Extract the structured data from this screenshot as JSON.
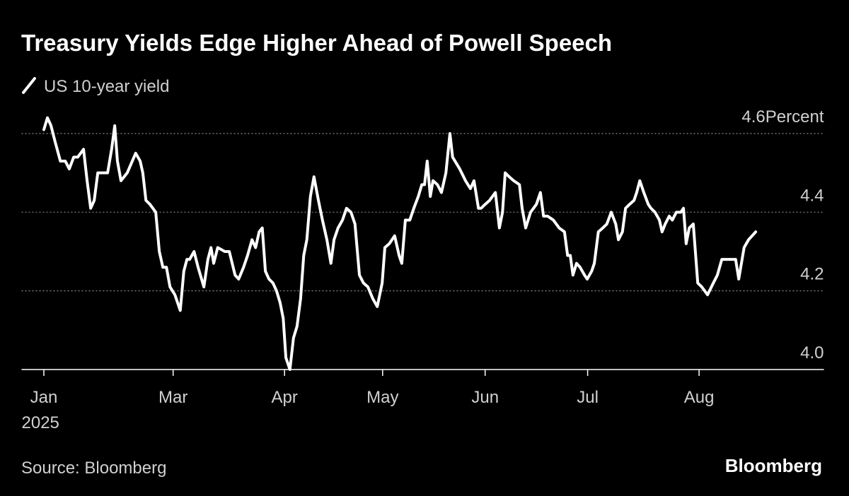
{
  "chart_data": {
    "type": "line",
    "title": "Treasury Yields Edge Higher Ahead of Powell Speech",
    "ylabel": "Percent",
    "source": "Source: Bloomberg",
    "brand": "Bloomberg",
    "grid": true,
    "legend": "top-left",
    "xlim": [
      -5,
      175
    ],
    "ylim": [
      4,
      4.65
    ],
    "yticks": [
      {
        "value": 4,
        "label": "4.0"
      },
      4.2,
      4.4,
      4.6
    ],
    "xticks": [
      {
        "value": 0,
        "label": "Jan\n2025"
      },
      {
        "value": 29,
        "label": "Mar"
      },
      {
        "value": 54,
        "label": "Apr"
      },
      {
        "value": 76,
        "label": "May"
      },
      {
        "value": 99,
        "label": "Jun"
      },
      {
        "value": 122,
        "label": "Jul"
      },
      {
        "value": 147,
        "label": "Aug"
      }
    ],
    "x": [
      0,
      0.8,
      1.6,
      2.5,
      3.7,
      4.8,
      5.7,
      6.7,
      7.6,
      8.9,
      9.7,
      10.5,
      11.3,
      12.1,
      13.3,
      14.3,
      15.2,
      15.9,
      16.5,
      17.3,
      18.7,
      20.6,
      21.6,
      22.2,
      22.9,
      23.8,
      25.1,
      25.9,
      26.7,
      27.5,
      28.3,
      29.4,
      30.6,
      31.4,
      32.1,
      32.7,
      33.7,
      34.6,
      35.9,
      36.8,
      37.5,
      38.1,
      39.0,
      40.6,
      41.6,
      42.9,
      43.7,
      44.8,
      45.7,
      46.7,
      47.5,
      48.3,
      49.0,
      49.7,
      50.5,
      51.4,
      52.2,
      53.0,
      53.7,
      54.3,
      55.2,
      56.0,
      56.8,
      57.6,
      58.3,
      59.0,
      59.8,
      60.6,
      61.6,
      62.5,
      63.5,
      64.4,
      65.1,
      66.0,
      67.0,
      67.9,
      68.9,
      69.8,
      70.8,
      71.7,
      72.7,
      73.8,
      74.8,
      75.9,
      76.5,
      77.5,
      78.7,
      79.7,
      80.3,
      81.1,
      82.1,
      83.0,
      84.0,
      84.8,
      85.4,
      86.0,
      86.7,
      87.3,
      88.3,
      89.2,
      90.2,
      91.1,
      91.7,
      93.3,
      94.6,
      95.7,
      96.5,
      97.5,
      98.1,
      99.0,
      100.0,
      101.3,
      102.2,
      102.9,
      103.5,
      104.4,
      105.4,
      106.7,
      107.3,
      108.1,
      109.2,
      110.5,
      111.4,
      112.1,
      113.0,
      114.3,
      115.6,
      116.8,
      117.5,
      118.1,
      118.7,
      119.5,
      120.3,
      121.3,
      121.9,
      122.9,
      123.5,
      124.4,
      125.4,
      126.3,
      127.3,
      128.3,
      128.9,
      129.8,
      130.5,
      131.4,
      132.4,
      133.0,
      133.7,
      134.6,
      135.6,
      136.2,
      137.1,
      138.1,
      138.7,
      139.4,
      140.3,
      141.0,
      141.9,
      142.9,
      143.5,
      144.1,
      144.8,
      145.7,
      146.7,
      147.6,
      148.9,
      150.2,
      151.1,
      152.1,
      153.3,
      155.2,
      155.9,
      156.5,
      157.1,
      158.1,
      159.7
    ],
    "series": [
      {
        "name": "US 10-year yield",
        "color": "#ffffff",
        "values": [
          4.61,
          4.64,
          4.62,
          4.58,
          4.53,
          4.53,
          4.51,
          4.54,
          4.54,
          4.56,
          4.48,
          4.41,
          4.43,
          4.5,
          4.5,
          4.5,
          4.56,
          4.62,
          4.53,
          4.48,
          4.5,
          4.55,
          4.53,
          4.5,
          4.43,
          4.42,
          4.4,
          4.3,
          4.26,
          4.26,
          4.21,
          4.19,
          4.15,
          4.25,
          4.28,
          4.28,
          4.3,
          4.26,
          4.21,
          4.28,
          4.31,
          4.27,
          4.31,
          4.3,
          4.3,
          4.24,
          4.23,
          4.26,
          4.29,
          4.33,
          4.31,
          4.35,
          4.36,
          4.25,
          4.23,
          4.22,
          4.2,
          4.17,
          4.13,
          4.03,
          4.0,
          4.08,
          4.11,
          4.18,
          4.29,
          4.33,
          4.44,
          4.49,
          4.43,
          4.38,
          4.33,
          4.27,
          4.33,
          4.36,
          4.38,
          4.41,
          4.4,
          4.37,
          4.24,
          4.22,
          4.21,
          4.18,
          4.16,
          4.22,
          4.31,
          4.32,
          4.34,
          4.29,
          4.27,
          4.38,
          4.38,
          4.41,
          4.44,
          4.47,
          4.47,
          4.53,
          4.44,
          4.48,
          4.47,
          4.45,
          4.5,
          4.6,
          4.54,
          4.51,
          4.48,
          4.46,
          4.48,
          4.41,
          4.41,
          4.42,
          4.43,
          4.45,
          4.36,
          4.4,
          4.5,
          4.49,
          4.48,
          4.47,
          4.41,
          4.36,
          4.4,
          4.42,
          4.45,
          4.39,
          4.39,
          4.38,
          4.36,
          4.35,
          4.29,
          4.29,
          4.24,
          4.27,
          4.26,
          4.24,
          4.23,
          4.25,
          4.27,
          4.35,
          4.36,
          4.37,
          4.4,
          4.37,
          4.33,
          4.35,
          4.41,
          4.42,
          4.43,
          4.45,
          4.48,
          4.45,
          4.42,
          4.41,
          4.4,
          4.38,
          4.35,
          4.37,
          4.39,
          4.38,
          4.4,
          4.4,
          4.41,
          4.32,
          4.36,
          4.37,
          4.22,
          4.21,
          4.19,
          4.22,
          4.24,
          4.28,
          4.28,
          4.28,
          4.23,
          4.27,
          4.31,
          4.33,
          4.35
        ]
      }
    ]
  }
}
